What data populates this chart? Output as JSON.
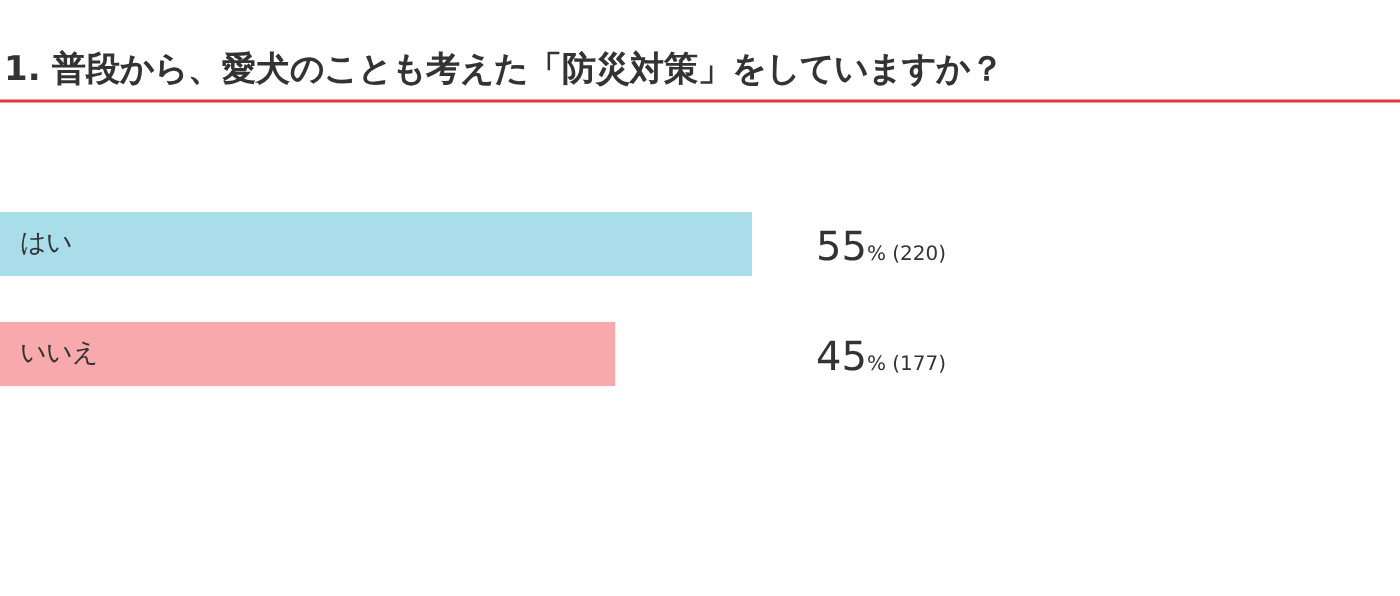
{
  "chart_data": {
    "type": "bar",
    "orientation": "horizontal",
    "title": "1. 普段から、愛犬のことも考えた「防災対策」をしていますか？",
    "categories": [
      "はい",
      "いいえ"
    ],
    "values": [
      55,
      45
    ],
    "colors": [
      "#a9dde9",
      "#f8a9ab"
    ],
    "value_labels": [
      "55% (220)",
      "45% (177)"
    ]
  }
}
